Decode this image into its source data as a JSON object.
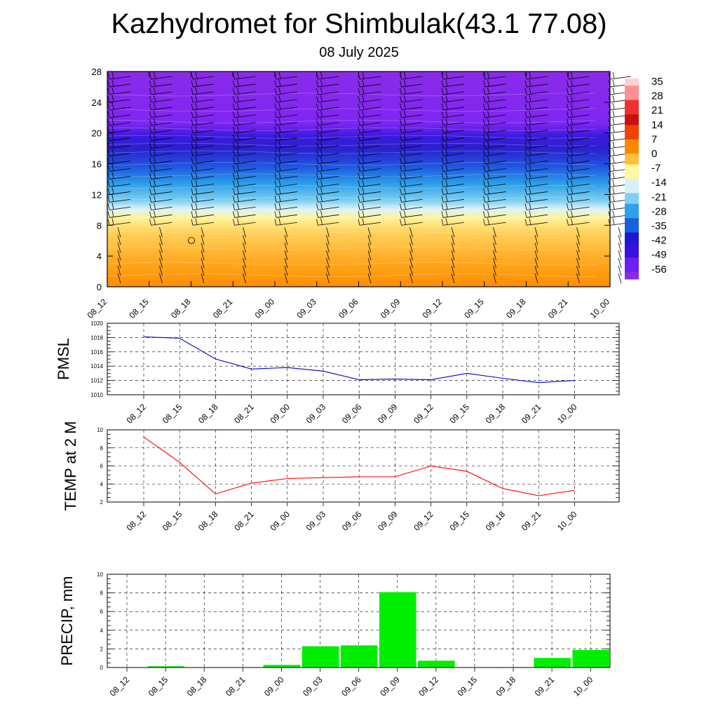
{
  "header": {
    "title": "Kazhydromet for Shimbulak(43.1 77.08)",
    "subtitle": "08 July 2025"
  },
  "colors": {
    "pmsl_line": "#0000cc",
    "temp_line": "#ff0000",
    "precip_bar": "#00ee00"
  },
  "chart_data": [
    {
      "type": "heatmap",
      "title": "",
      "x_categories": [
        "08_12",
        "08_15",
        "08_18",
        "08_21",
        "09_00",
        "09_03",
        "09_06",
        "09_09",
        "09_12",
        "09_15",
        "09_18",
        "09_21",
        "10_00"
      ],
      "y_ticks": [
        0,
        4,
        8,
        12,
        16,
        20,
        24,
        28
      ],
      "ylim": [
        0,
        28
      ],
      "colorbar_labels": [
        "35",
        "28",
        "21",
        "14",
        "7",
        "0",
        "-7",
        "-14",
        "-21",
        "-28",
        "-35",
        "-42",
        "-49",
        "-56"
      ],
      "overlay": "wind barbs",
      "temperature_profile": [
        {
          "level": 0,
          "value": 14
        },
        {
          "level": 4,
          "value": 8
        },
        {
          "level": 8,
          "value": -4
        },
        {
          "level": 10,
          "value": -12
        },
        {
          "level": 12,
          "value": -25
        },
        {
          "level": 16,
          "value": -40
        },
        {
          "level": 20,
          "value": -60
        },
        {
          "level": 22,
          "value": -52
        },
        {
          "level": 28,
          "value": -56
        }
      ]
    },
    {
      "type": "line",
      "ylabel": "PMSL",
      "categories": [
        "08_12",
        "08_15",
        "08_18",
        "08_21",
        "09_00",
        "09_03",
        "09_06",
        "09_09",
        "09_12",
        "09_15",
        "09_18",
        "09_21",
        "10_00"
      ],
      "values": [
        1018.1,
        1017.9,
        1015.0,
        1013.6,
        1013.8,
        1013.3,
        1012.1,
        1012.2,
        1012.1,
        1013.0,
        1012.3,
        1011.7,
        1012.0
      ],
      "ylim": [
        1010,
        1020
      ],
      "y_ticks": [
        1010,
        1012,
        1014,
        1016,
        1018,
        1020
      ],
      "grid": true
    },
    {
      "type": "line",
      "ylabel": "TEMP at 2 M",
      "categories": [
        "08_12",
        "08_15",
        "08_18",
        "08_21",
        "09_00",
        "09_03",
        "09_06",
        "09_09",
        "09_12",
        "09_15",
        "09_18",
        "09_21",
        "10_00"
      ],
      "values": [
        9.2,
        6.4,
        2.9,
        4.1,
        4.6,
        4.7,
        4.8,
        4.8,
        6.0,
        5.4,
        3.5,
        2.7,
        3.3
      ],
      "ylim": [
        2,
        10
      ],
      "y_ticks": [
        2,
        4,
        6,
        8,
        10
      ],
      "grid": true
    },
    {
      "type": "bar",
      "ylabel": "PRECIP, mm",
      "categories": [
        "08_12",
        "08_15",
        "08_18",
        "08_21",
        "09_00",
        "09_03",
        "09_06",
        "09_09",
        "09_12",
        "09_15",
        "09_18",
        "09_21",
        "10_00"
      ],
      "values": [
        0,
        0.15,
        0,
        0,
        0.3,
        2.3,
        2.4,
        8.1,
        0.75,
        0,
        0.05,
        1.05,
        1.9
      ],
      "ylim": [
        0,
        10
      ],
      "y_ticks": [
        0,
        2,
        4,
        6,
        8,
        10
      ],
      "grid": true
    }
  ]
}
